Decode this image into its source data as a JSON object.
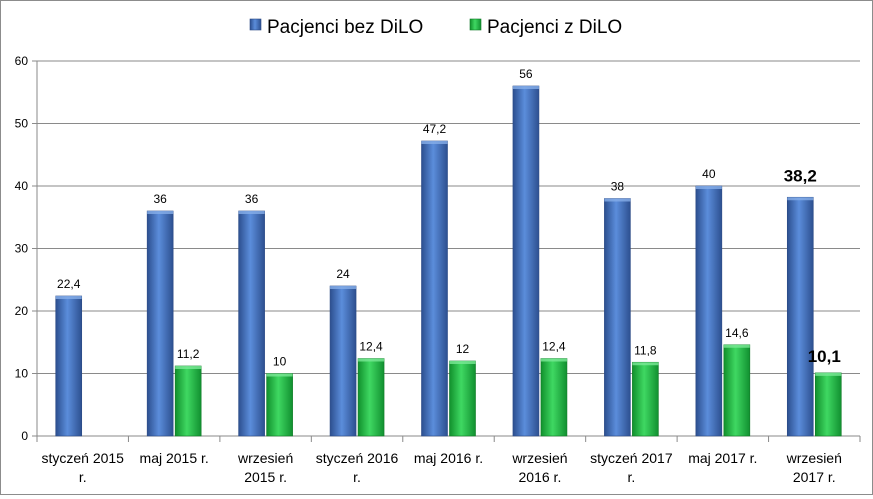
{
  "chart_data": {
    "type": "bar",
    "title": "",
    "xlabel": "",
    "ylabel": "",
    "ylim": [
      0,
      60
    ],
    "yticks": [
      0,
      10,
      20,
      30,
      40,
      50,
      60
    ],
    "grid": true,
    "legend_position": "top-center",
    "categories": [
      [
        "styczeń 2015",
        "r."
      ],
      [
        "maj 2015 r."
      ],
      [
        "wrzesień",
        "2015 r."
      ],
      [
        "styczeń 2016",
        "r."
      ],
      [
        "maj 2016 r."
      ],
      [
        "wrzesień",
        "2016 r."
      ],
      [
        "styczeń 2017",
        "r."
      ],
      [
        "maj 2017 r."
      ],
      [
        "wrzesień",
        "2017 r."
      ]
    ],
    "series": [
      {
        "name": "Pacjenci bez DiLO",
        "color": "#4a7ac9",
        "values": [
          22.4,
          36,
          36,
          24,
          47.2,
          56,
          38,
          40,
          38.2
        ],
        "labels": [
          "22,4",
          "36",
          "36",
          "24",
          "47,2",
          "56",
          "38",
          "40",
          "38,2"
        ]
      },
      {
        "name": "Pacjenci z DiLO",
        "color": "#2fbf4a",
        "values": [
          null,
          11.2,
          10,
          12.4,
          12,
          12.4,
          11.8,
          14.6,
          10.1
        ],
        "labels": [
          "",
          "11,2",
          "10",
          "12,4",
          "12",
          "12,4",
          "11,8",
          "14,6",
          "10,1"
        ]
      }
    ],
    "emphasized_category_index": 8
  }
}
